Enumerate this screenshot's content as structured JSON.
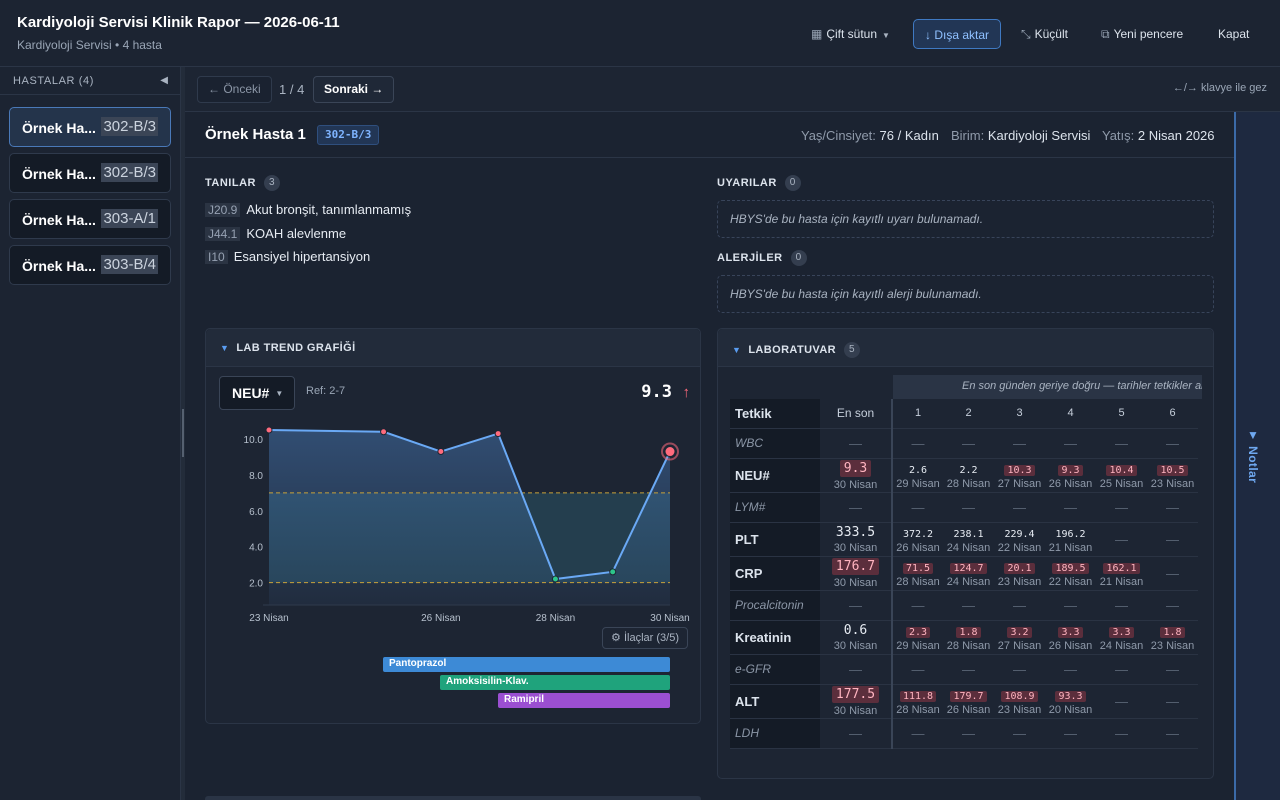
{
  "header": {
    "title": "Kardiyoloji Servisi Klinik Rapor — 2026-06-11",
    "subtitle": "Kardiyoloji Servisi • 4 hasta",
    "layout_btn": "Çift sütun",
    "export_btn": "↓ Dışa aktar",
    "minimize_btn": "Küçült",
    "newwin_btn": "Yeni pencere",
    "close_btn": "Kapat"
  },
  "sidebar": {
    "title": "HASTALAR (4)",
    "patients": [
      {
        "name": "Örnek Ha...",
        "bed": "302-B/3"
      },
      {
        "name": "Örnek Ha...",
        "bed": "302-B/3"
      },
      {
        "name": "Örnek Ha...",
        "bed": "303-A/1"
      },
      {
        "name": "Örnek Ha...",
        "bed": "303-B/4"
      }
    ]
  },
  "nav": {
    "prev": "← Önceki",
    "pager": "1 / 4",
    "next": "Sonraki →",
    "hint": "←/→ klavye ile gez"
  },
  "patient": {
    "name": "Örnek Hasta 1",
    "bed": "302-B/3",
    "age_label": "Yaş/Cinsiyet:",
    "age_value": "76 / Kadın",
    "unit_label": "Birim:",
    "unit_value": "Kardiyoloji Servisi",
    "admit_label": "Yatış:",
    "admit_value": "2 Nisan 2026"
  },
  "diagnoses": {
    "title": "TANILAR",
    "count": "3",
    "items": [
      {
        "code": "J20.9",
        "text": "Akut bronşit, tanımlanmamış"
      },
      {
        "code": "J44.1",
        "text": "KOAH alevlenme"
      },
      {
        "code": "I10",
        "text": "Esansiyel hipertansiyon"
      }
    ]
  },
  "warnings": {
    "title": "UYARILAR",
    "count": "0",
    "empty": "HBYS'de bu hasta için kayıtlı uyarı bulunamadı."
  },
  "allergies": {
    "title": "ALERJİLER",
    "count": "0",
    "empty": "HBYS'de bu hasta için kayıtlı alerji bulunamadı."
  },
  "trend": {
    "title": "LAB TREND GRAFİĞİ",
    "selected_test": "NEU#",
    "ref": "Ref: 2-7",
    "latest": "9.3",
    "meds_btn": "İlaçlar (3/5)",
    "medications": [
      {
        "name": "Pantoprazol",
        "color": "#3d8ad6"
      },
      {
        "name": "Amoksisilin-Klav.",
        "color": "#1fa37c"
      },
      {
        "name": "Ramipril",
        "color": "#9b4fd1"
      }
    ]
  },
  "chart_data": {
    "type": "line",
    "series": [
      {
        "name": "NEU#",
        "x": [
          "23 Nisan",
          "25 Nisan",
          "26 Nisan",
          "27 Nisan",
          "28 Nisan",
          "29 Nisan",
          "30 Nisan"
        ],
        "values": [
          10.5,
          10.4,
          9.3,
          10.3,
          2.2,
          2.6,
          9.3
        ]
      }
    ],
    "x_ticks": [
      "23 Nisan",
      "26 Nisan",
      "28 Nisan",
      "30 Nisan"
    ],
    "y_ticks": [
      "2.0",
      "4.0",
      "6.0",
      "8.0",
      "10.0"
    ],
    "ylim": [
      1.2,
      11.0
    ],
    "reference_range": [
      2,
      7
    ]
  },
  "lab": {
    "title": "LABORATUVAR",
    "count": "5",
    "hint": "En son günden geriye doğru — tarihler tetkikler arası",
    "col_test": "Tetkik",
    "col_latest": "En son",
    "day_cols": [
      "1",
      "2",
      "3",
      "4",
      "5",
      "6"
    ],
    "rows": [
      {
        "name": "WBC",
        "muted": true,
        "latest": null,
        "cells": [
          null,
          null,
          null,
          null,
          null,
          null
        ]
      },
      {
        "name": "NEU#",
        "muted": false,
        "latest": {
          "v": "9.3",
          "d": "30 Nisan",
          "hi": true
        },
        "cells": [
          {
            "v": "2.6",
            "d": "29 Nisan",
            "hi": false
          },
          {
            "v": "2.2",
            "d": "28 Nisan",
            "hi": false
          },
          {
            "v": "10.3",
            "d": "27 Nisan",
            "hi": true
          },
          {
            "v": "9.3",
            "d": "26 Nisan",
            "hi": true
          },
          {
            "v": "10.4",
            "d": "25 Nisan",
            "hi": true
          },
          {
            "v": "10.5",
            "d": "23 Nisan",
            "hi": true
          }
        ]
      },
      {
        "name": "LYM#",
        "muted": true,
        "latest": null,
        "cells": [
          null,
          null,
          null,
          null,
          null,
          null
        ]
      },
      {
        "name": "PLT",
        "muted": false,
        "latest": {
          "v": "333.5",
          "d": "30 Nisan",
          "hi": false
        },
        "cells": [
          {
            "v": "372.2",
            "d": "26 Nisan",
            "hi": false
          },
          {
            "v": "238.1",
            "d": "24 Nisan",
            "hi": false
          },
          {
            "v": "229.4",
            "d": "22 Nisan",
            "hi": false
          },
          {
            "v": "196.2",
            "d": "21 Nisan",
            "hi": false
          },
          null,
          null
        ]
      },
      {
        "name": "CRP",
        "muted": false,
        "latest": {
          "v": "176.7",
          "d": "30 Nisan",
          "hi": true
        },
        "cells": [
          {
            "v": "71.5",
            "d": "28 Nisan",
            "hi": true
          },
          {
            "v": "124.7",
            "d": "24 Nisan",
            "hi": true
          },
          {
            "v": "20.1",
            "d": "23 Nisan",
            "hi": true
          },
          {
            "v": "189.5",
            "d": "22 Nisan",
            "hi": true
          },
          {
            "v": "162.1",
            "d": "21 Nisan",
            "hi": true
          },
          null
        ]
      },
      {
        "name": "Procalcitonin",
        "muted": true,
        "latest": null,
        "cells": [
          null,
          null,
          null,
          null,
          null,
          null
        ]
      },
      {
        "name": "Kreatinin",
        "muted": false,
        "latest": {
          "v": "0.6",
          "d": "30 Nisan",
          "hi": false
        },
        "cells": [
          {
            "v": "2.3",
            "d": "29 Nisan",
            "hi": true
          },
          {
            "v": "1.8",
            "d": "28 Nisan",
            "hi": true
          },
          {
            "v": "3.2",
            "d": "27 Nisan",
            "hi": true
          },
          {
            "v": "3.3",
            "d": "26 Nisan",
            "hi": true
          },
          {
            "v": "3.3",
            "d": "24 Nisan",
            "hi": true
          },
          {
            "v": "1.8",
            "d": "23 Nisan",
            "hi": true
          }
        ]
      },
      {
        "name": "e-GFR",
        "muted": true,
        "latest": null,
        "cells": [
          null,
          null,
          null,
          null,
          null,
          null
        ]
      },
      {
        "name": "ALT",
        "muted": false,
        "latest": {
          "v": "177.5",
          "d": "30 Nisan",
          "hi": true
        },
        "cells": [
          {
            "v": "111.8",
            "d": "28 Nisan",
            "hi": true
          },
          {
            "v": "179.7",
            "d": "26 Nisan",
            "hi": true
          },
          {
            "v": "108.9",
            "d": "23 Nisan",
            "hi": true
          },
          {
            "v": "93.3",
            "d": "20 Nisan",
            "hi": true
          },
          null,
          null
        ]
      },
      {
        "name": "LDH",
        "muted": true,
        "latest": null,
        "cells": [
          null,
          null,
          null,
          null,
          null,
          null
        ]
      }
    ]
  },
  "notes": {
    "label": "▼ Notlar"
  },
  "colors": {
    "accent": "#5a9cf0",
    "high": "#ff6b7d",
    "line": "#6aa9f5",
    "ref_band": "#2f5e6e"
  }
}
